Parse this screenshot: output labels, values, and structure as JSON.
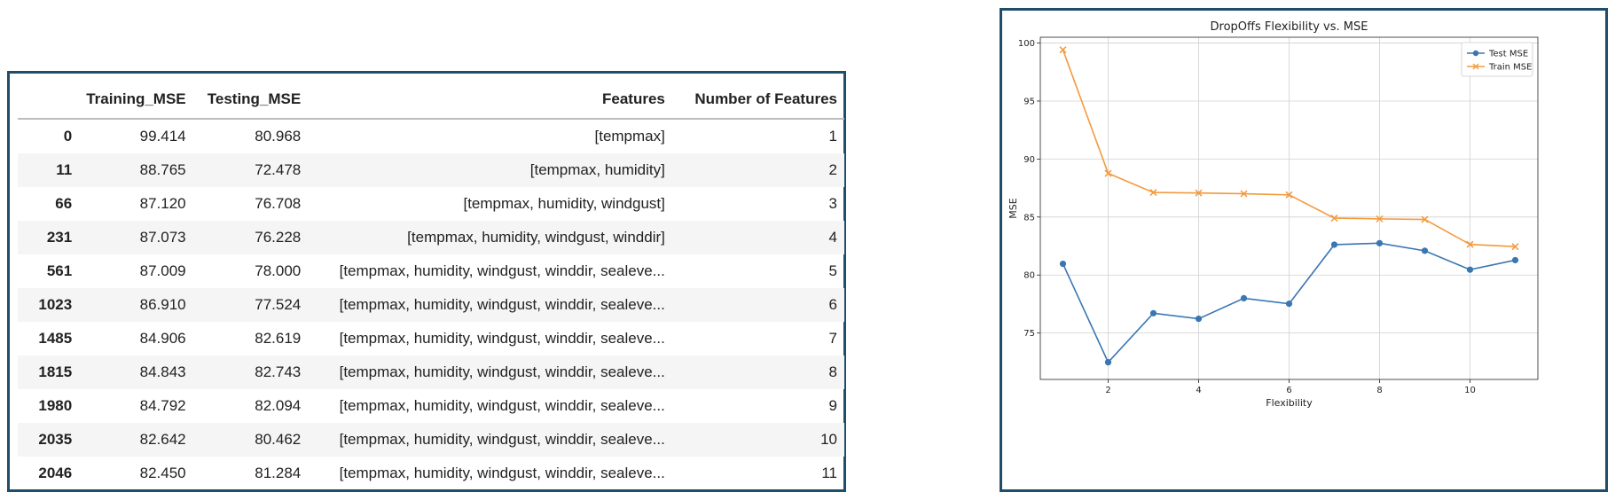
{
  "table": {
    "columns": [
      "",
      "Training_MSE",
      "Testing_MSE",
      "Features",
      "Number of Features"
    ],
    "rows": [
      [
        "0",
        "99.414",
        "80.968",
        "[tempmax]",
        "1"
      ],
      [
        "11",
        "88.765",
        "72.478",
        "[tempmax, humidity]",
        "2"
      ],
      [
        "66",
        "87.120",
        "76.708",
        "[tempmax, humidity, windgust]",
        "3"
      ],
      [
        "231",
        "87.073",
        "76.228",
        "[tempmax, humidity, windgust, winddir]",
        "4"
      ],
      [
        "561",
        "87.009",
        "78.000",
        "[tempmax, humidity, windgust, winddir, sealeve...",
        "5"
      ],
      [
        "1023",
        "86.910",
        "77.524",
        "[tempmax, humidity, windgust, winddir, sealeve...",
        "6"
      ],
      [
        "1485",
        "84.906",
        "82.619",
        "[tempmax, humidity, windgust, winddir, sealeve...",
        "7"
      ],
      [
        "1815",
        "84.843",
        "82.743",
        "[tempmax, humidity, windgust, winddir, sealeve...",
        "8"
      ],
      [
        "1980",
        "84.792",
        "82.094",
        "[tempmax, humidity, windgust, winddir, sealeve...",
        "9"
      ],
      [
        "2035",
        "82.642",
        "80.462",
        "[tempmax, humidity, windgust, winddir, sealeve...",
        "10"
      ],
      [
        "2046",
        "82.450",
        "81.284",
        "[tempmax, humidity, windgust, winddir, sealeve...",
        "11"
      ]
    ]
  },
  "chart_data": {
    "type": "line",
    "title": "DropOffs Flexibility vs. MSE",
    "xlabel": "Flexibility",
    "ylabel": "MSE",
    "x": [
      1,
      2,
      3,
      4,
      5,
      6,
      7,
      8,
      9,
      10,
      11
    ],
    "xlim": [
      0.5,
      11.5
    ],
    "ylim": [
      71.0,
      100.5
    ],
    "xticks": [
      2,
      4,
      6,
      8,
      10
    ],
    "yticks": [
      75,
      80,
      85,
      90,
      95,
      100
    ],
    "grid": true,
    "legend_position": "top-right",
    "series": [
      {
        "name": "Test MSE",
        "color": "#3a76b3",
        "marker": "circle",
        "values": [
          80.968,
          72.478,
          76.708,
          76.228,
          78.0,
          77.524,
          82.619,
          82.743,
          82.094,
          80.462,
          81.284
        ]
      },
      {
        "name": "Train MSE",
        "color": "#f39a3c",
        "marker": "x",
        "values": [
          99.414,
          88.765,
          87.12,
          87.073,
          87.009,
          86.91,
          84.906,
          84.843,
          84.792,
          82.642,
          82.45
        ]
      }
    ]
  }
}
